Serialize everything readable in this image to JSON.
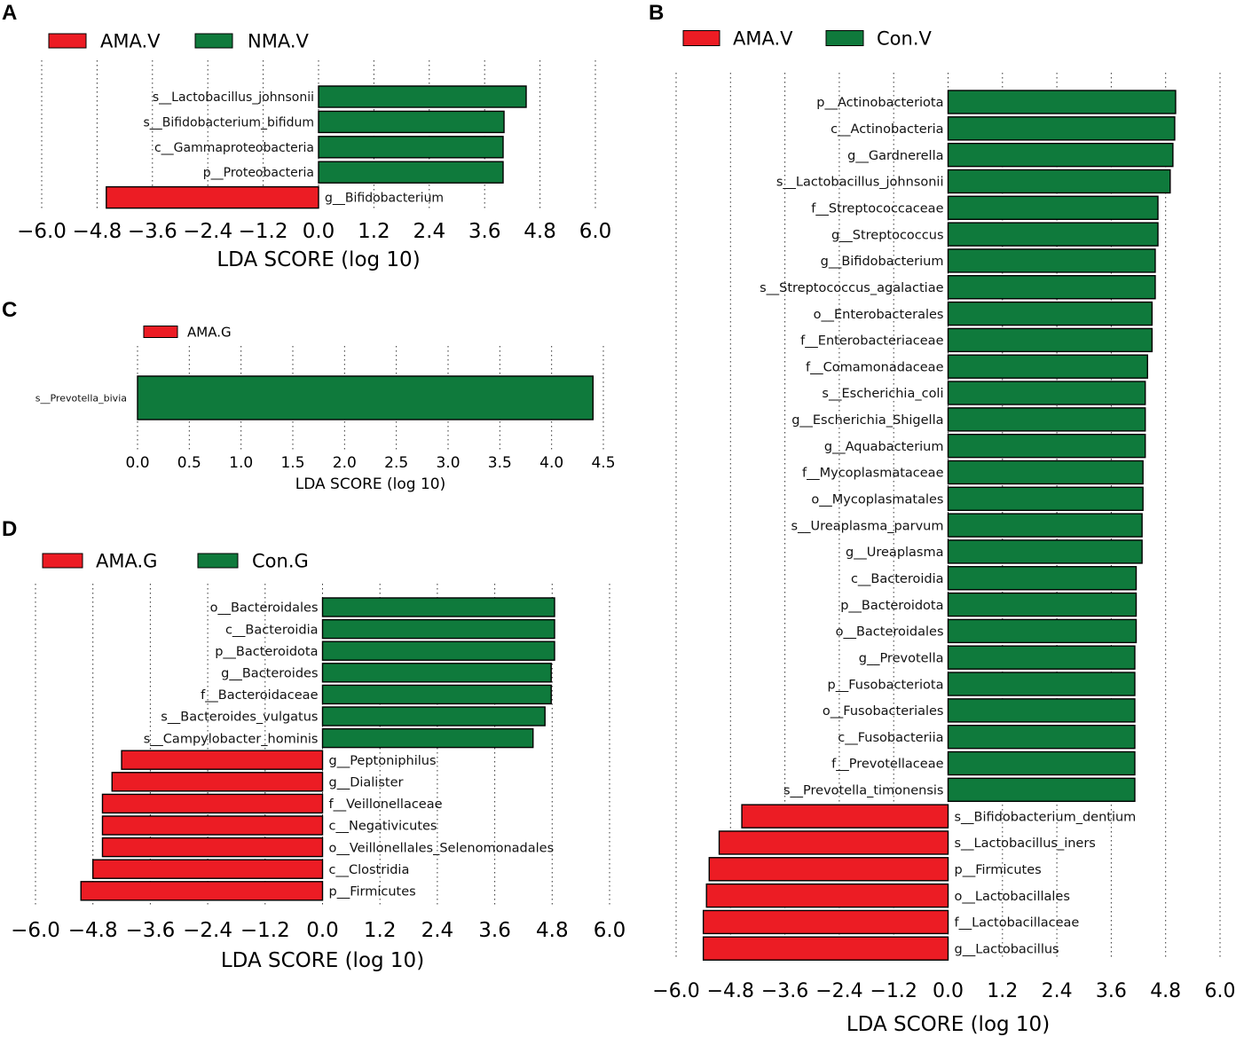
{
  "colors": {
    "enriched_case": "#ec1c24",
    "enriched_control": "#0f7a3c"
  },
  "chart_data": [
    {
      "panel": "A",
      "type": "bar",
      "orientation": "horizontal",
      "legend": [
        {
          "name": "AMA.V",
          "color": "#ec1c24"
        },
        {
          "name": "NMA.V",
          "color": "#0f7a3c"
        }
      ],
      "xlabel": "LDA SCORE (log 10)",
      "xlim": [
        -6.0,
        6.0
      ],
      "xticks": [
        "−6.0",
        "−4.8",
        "−3.6",
        "−2.4",
        "−1.2",
        "0.0",
        "1.2",
        "2.4",
        "3.6",
        "4.8",
        "6.0"
      ],
      "xtick_values": [
        -6.0,
        -4.8,
        -3.6,
        -2.4,
        -1.2,
        0.0,
        1.2,
        2.4,
        3.6,
        4.8,
        6.0
      ],
      "features": [
        {
          "name": "s__Lactobacillus_johnsonii",
          "value": 4.5
        },
        {
          "name": "s__Bifidobacterium_bifidum",
          "value": 4.02
        },
        {
          "name": "c__Gammaproteobacteria",
          "value": 4.0
        },
        {
          "name": "p__Proteobacteria",
          "value": 4.0
        },
        {
          "name": "g__Bifidobacterium",
          "value": -4.6
        }
      ]
    },
    {
      "panel": "B",
      "type": "bar",
      "orientation": "horizontal",
      "legend": [
        {
          "name": "AMA.V",
          "color": "#ec1c24"
        },
        {
          "name": "Con.V",
          "color": "#0f7a3c"
        }
      ],
      "xlabel": "LDA SCORE (log 10)",
      "xlim": [
        -6.0,
        6.0
      ],
      "xticks": [
        "−6.0",
        "−4.8",
        "−3.6",
        "−2.4",
        "−1.2",
        "0.0",
        "1.2",
        "2.4",
        "3.6",
        "4.8",
        "6.0"
      ],
      "xtick_values": [
        -6.0,
        -4.8,
        -3.6,
        -2.4,
        -1.2,
        0.0,
        1.2,
        2.4,
        3.6,
        4.8,
        6.0
      ],
      "features": [
        {
          "name": "p__Actinobacteriota",
          "value": 5.02
        },
        {
          "name": "c__Actinobacteria",
          "value": 5.0
        },
        {
          "name": "g__Gardnerella",
          "value": 4.96
        },
        {
          "name": "s__Lactobacillus_johnsonii",
          "value": 4.9
        },
        {
          "name": "f__Streptococcaceae",
          "value": 4.63
        },
        {
          "name": "g__Streptococcus",
          "value": 4.63
        },
        {
          "name": "g__Bifidobacterium",
          "value": 4.57
        },
        {
          "name": "s__Streptococcus_agalactiae",
          "value": 4.57
        },
        {
          "name": "o__Enterobacterales",
          "value": 4.5
        },
        {
          "name": "f__Enterobacteriaceae",
          "value": 4.5
        },
        {
          "name": "f__Comamonadaceae",
          "value": 4.4
        },
        {
          "name": "s__Escherichia_coli",
          "value": 4.35
        },
        {
          "name": "g__Escherichia_Shigella",
          "value": 4.35
        },
        {
          "name": "g__Aquabacterium",
          "value": 4.35
        },
        {
          "name": "f__Mycoplasmataceae",
          "value": 4.3
        },
        {
          "name": "o__Mycoplasmatales",
          "value": 4.3
        },
        {
          "name": "s__Ureaplasma_parvum",
          "value": 4.28
        },
        {
          "name": "g__Ureaplasma",
          "value": 4.28
        },
        {
          "name": "c__Bacteroidia",
          "value": 4.15
        },
        {
          "name": "p__Bacteroidota",
          "value": 4.15
        },
        {
          "name": "o__Bacteroidales",
          "value": 4.15
        },
        {
          "name": "g__Prevotella",
          "value": 4.12
        },
        {
          "name": "p__Fusobacteriota",
          "value": 4.12
        },
        {
          "name": "o__Fusobacteriales",
          "value": 4.12
        },
        {
          "name": "c__Fusobacteriia",
          "value": 4.12
        },
        {
          "name": "f__Prevotellaceae",
          "value": 4.12
        },
        {
          "name": "s__Prevotella_timonensis",
          "value": 4.12
        },
        {
          "name": "s__Bifidobacterium_dentium",
          "value": -4.55
        },
        {
          "name": "s__Lactobacillus_iners",
          "value": -5.05
        },
        {
          "name": "p__Firmicutes",
          "value": -5.27
        },
        {
          "name": "o__Lactobacillales",
          "value": -5.33
        },
        {
          "name": "f__Lactobacillaceae",
          "value": -5.4
        },
        {
          "name": "g__Lactobacillus",
          "value": -5.4
        }
      ]
    },
    {
      "panel": "C",
      "type": "bar",
      "orientation": "horizontal",
      "legend": [
        {
          "name": "AMA.G",
          "color": "#ec1c24"
        }
      ],
      "xlabel": "LDA SCORE (log 10)",
      "xlim": [
        0.0,
        4.5
      ],
      "xticks": [
        "0.0",
        "0.5",
        "1.0",
        "1.5",
        "2.0",
        "2.5",
        "3.0",
        "3.5",
        "4.0",
        "4.5"
      ],
      "xtick_values": [
        0.0,
        0.5,
        1.0,
        1.5,
        2.0,
        2.5,
        3.0,
        3.5,
        4.0,
        4.5
      ],
      "features": [
        {
          "name": "s__Prevotella_bivia",
          "value": 4.4
        }
      ]
    },
    {
      "panel": "D",
      "type": "bar",
      "orientation": "horizontal",
      "legend": [
        {
          "name": "AMA.G",
          "color": "#ec1c24"
        },
        {
          "name": "Con.G",
          "color": "#0f7a3c"
        }
      ],
      "xlabel": "LDA SCORE (log 10)",
      "xlim": [
        -6.0,
        6.0
      ],
      "xticks": [
        "−6.0",
        "−4.8",
        "−3.6",
        "−2.4",
        "−1.2",
        "0.0",
        "1.2",
        "2.4",
        "3.6",
        "4.8",
        "6.0"
      ],
      "xtick_values": [
        -6.0,
        -4.8,
        -3.6,
        -2.4,
        -1.2,
        0.0,
        1.2,
        2.4,
        3.6,
        4.8,
        6.0
      ],
      "features": [
        {
          "name": "o__Bacteroidales",
          "value": 4.85
        },
        {
          "name": "c__Bacteroidia",
          "value": 4.85
        },
        {
          "name": "p__Bacteroidota",
          "value": 4.85
        },
        {
          "name": "g__Bacteroides",
          "value": 4.78
        },
        {
          "name": "f__Bacteroidaceae",
          "value": 4.78
        },
        {
          "name": "s__Bacteroides_vulgatus",
          "value": 4.65
        },
        {
          "name": "s__Campylobacter_hominis",
          "value": 4.4
        },
        {
          "name": "g__Peptoniphilus",
          "value": -4.2
        },
        {
          "name": "g__Dialister",
          "value": -4.4
        },
        {
          "name": "f__Veillonellaceae",
          "value": -4.6
        },
        {
          "name": "c__Negativicutes",
          "value": -4.6
        },
        {
          "name": "o__Veillonellales_Selenomonadales",
          "value": -4.6
        },
        {
          "name": "c__Clostridia",
          "value": -4.8
        },
        {
          "name": "p__Firmicutes",
          "value": -5.05
        }
      ]
    }
  ]
}
